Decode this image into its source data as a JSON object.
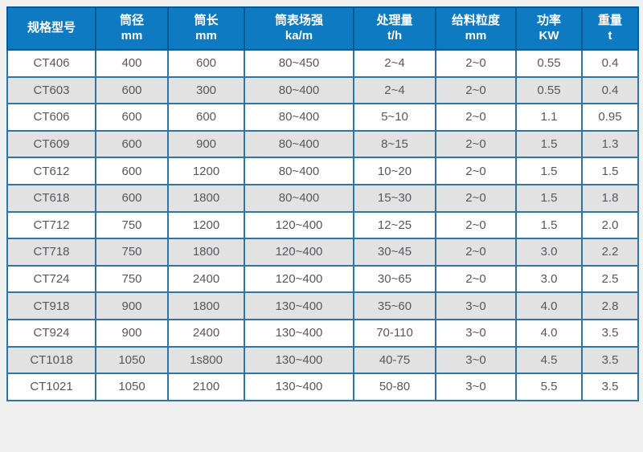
{
  "colors": {
    "page_bg": "#efefef",
    "header_bg": "#0e7ac1",
    "header_divider": "#0a5a94",
    "header_text": "#ffffff",
    "grid_border": "#2e75a6",
    "row_bg": "#ffffff",
    "row_alt_bg": "#e2e2e2",
    "cell_text": "#57575c"
  },
  "table": {
    "columns": [
      {
        "title": "规格型号",
        "unit": ""
      },
      {
        "title": "筒径",
        "unit": "mm"
      },
      {
        "title": "筒长",
        "unit": "mm"
      },
      {
        "title": "筒表场强",
        "unit": "ka/m"
      },
      {
        "title": "处理量",
        "unit": "t/h"
      },
      {
        "title": "给料粒度",
        "unit": "mm"
      },
      {
        "title": "功率",
        "unit": "KW"
      },
      {
        "title": "重量",
        "unit": "t"
      }
    ],
    "rows": [
      [
        "CT406",
        "400",
        "600",
        "80~450",
        "2~4",
        "2~0",
        "0.55",
        "0.4"
      ],
      [
        "CT603",
        "600",
        "300",
        "80~400",
        "2~4",
        "2~0",
        "0.55",
        "0.4"
      ],
      [
        "CT606",
        "600",
        "600",
        "80~400",
        "5~10",
        "2~0",
        "1.1",
        "0.95"
      ],
      [
        "CT609",
        "600",
        "900",
        "80~400",
        "8~15",
        "2~0",
        "1.5",
        "1.3"
      ],
      [
        "CT612",
        "600",
        "1200",
        "80~400",
        "10~20",
        "2~0",
        "1.5",
        "1.5"
      ],
      [
        "CT618",
        "600",
        "1800",
        "80~400",
        "15~30",
        "2~0",
        "1.5",
        "1.8"
      ],
      [
        "CT712",
        "750",
        "1200",
        "120~400",
        "12~25",
        "2~0",
        "1.5",
        "2.0"
      ],
      [
        "CT718",
        "750",
        "1800",
        "120~400",
        "30~45",
        "2~0",
        "3.0",
        "2.2"
      ],
      [
        "CT724",
        "750",
        "2400",
        "120~400",
        "30~65",
        "2~0",
        "3.0",
        "2.5"
      ],
      [
        "CT918",
        "900",
        "1800",
        "130~400",
        "35~60",
        "3~0",
        "4.0",
        "2.8"
      ],
      [
        "CT924",
        "900",
        "2400",
        "130~400",
        "70-110",
        "3~0",
        "4.0",
        "3.5"
      ],
      [
        "CT1018",
        "1050",
        "1s800",
        "130~400",
        "40-75",
        "3~0",
        "4.5",
        "3.5"
      ],
      [
        "CT1021",
        "1050",
        "2100",
        "130~400",
        "50-80",
        "3~0",
        "5.5",
        "3.5"
      ]
    ]
  }
}
